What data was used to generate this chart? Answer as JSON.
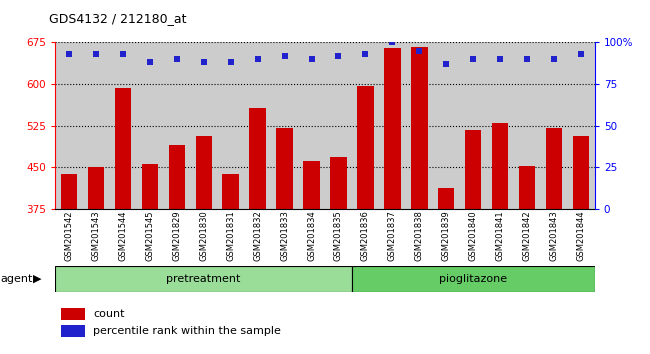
{
  "title": "GDS4132 / 212180_at",
  "samples": [
    "GSM201542",
    "GSM201543",
    "GSM201544",
    "GSM201545",
    "GSM201829",
    "GSM201830",
    "GSM201831",
    "GSM201832",
    "GSM201833",
    "GSM201834",
    "GSM201835",
    "GSM201836",
    "GSM201837",
    "GSM201838",
    "GSM201839",
    "GSM201840",
    "GSM201841",
    "GSM201842",
    "GSM201843",
    "GSM201844"
  ],
  "counts": [
    437,
    450,
    593,
    455,
    490,
    507,
    438,
    557,
    520,
    462,
    468,
    596,
    665,
    666,
    413,
    518,
    529,
    452,
    520,
    507
  ],
  "percentile_rank": [
    93,
    93,
    93,
    88,
    90,
    88,
    88,
    90,
    92,
    90,
    92,
    93,
    100,
    95,
    87,
    90,
    90,
    90,
    90,
    93
  ],
  "groups": [
    {
      "name": "pretreatment",
      "samples_count": 11
    },
    {
      "name": "pioglitazone",
      "samples_count": 9
    }
  ],
  "group_label": "agent",
  "ylim_left": [
    375,
    675
  ],
  "yticks_left": [
    375,
    450,
    525,
    600,
    675
  ],
  "ylim_right": [
    0,
    100
  ],
  "yticks_right": [
    0,
    25,
    50,
    75,
    100
  ],
  "bar_color": "#cc0000",
  "dot_color": "#2222cc",
  "bar_width": 0.6,
  "plot_bg_color": "#cccccc",
  "figure_bg_color": "#ffffff",
  "pretreatment_color": "#99dd99",
  "pioglitazone_color": "#66cc66",
  "legend_red_label": "count",
  "legend_blue_label": "percentile rank within the sample"
}
